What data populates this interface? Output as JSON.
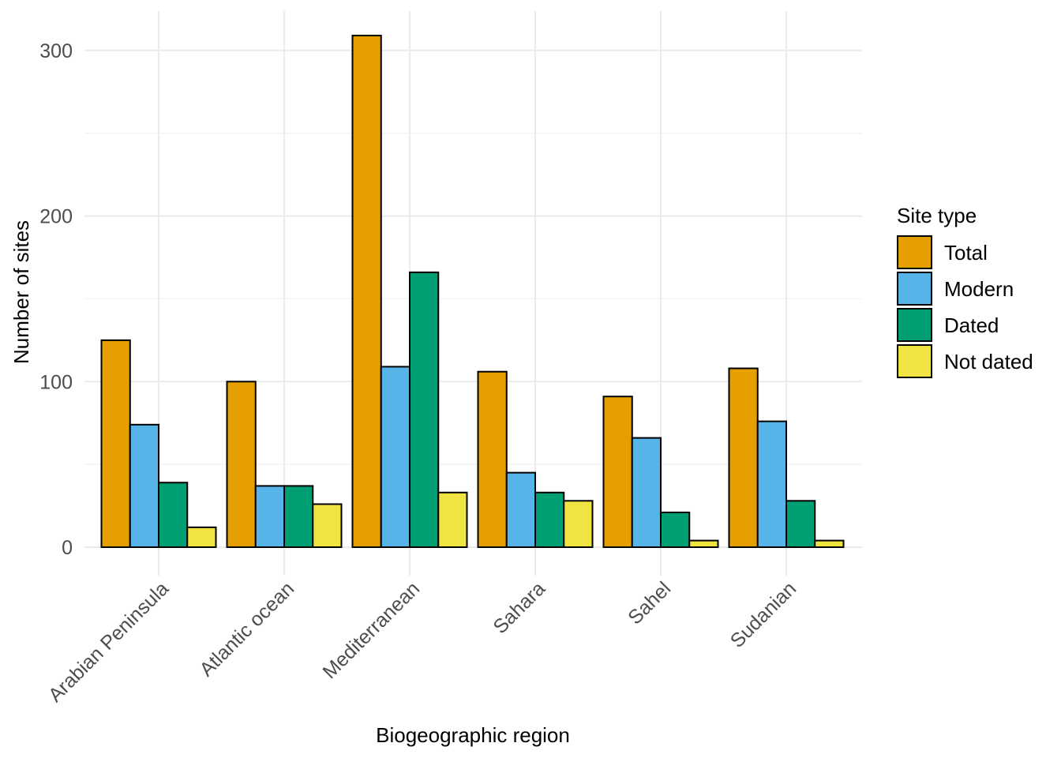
{
  "chart_data": {
    "type": "bar",
    "title": "",
    "xlabel": "Biogeographic region",
    "ylabel": "Number of sites",
    "categories": [
      "Arabian Peninsula",
      "Atlantic ocean",
      "Mediterranean",
      "Sahara",
      "Sahel",
      "Sudanian"
    ],
    "series": [
      {
        "name": "Total",
        "color": "#E69F00",
        "values": [
          125,
          100,
          309,
          106,
          91,
          108
        ]
      },
      {
        "name": "Modern",
        "color": "#56B4E9",
        "values": [
          74,
          37,
          109,
          45,
          66,
          76
        ]
      },
      {
        "name": "Dated",
        "color": "#009E73",
        "values": [
          39,
          37,
          166,
          33,
          21,
          28
        ]
      },
      {
        "name": "Not dated",
        "color": "#F0E442",
        "values": [
          12,
          26,
          33,
          28,
          4,
          4
        ]
      }
    ],
    "ylim": [
      0,
      310
    ],
    "yticks": [
      0,
      100,
      200,
      300
    ],
    "grid": true,
    "legend": {
      "title": "Site type",
      "position": "right"
    }
  }
}
